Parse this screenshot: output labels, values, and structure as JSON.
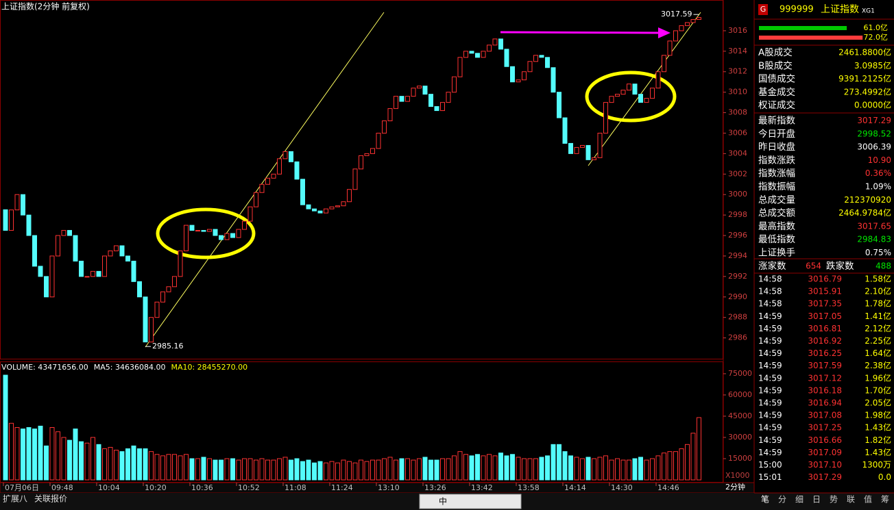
{
  "chart_data": [
    {
      "type": "candlestick",
      "title": "上证指数(2分钟 前复权)",
      "up_color": "#ff3232",
      "down_color": "#54fcfc",
      "ylim": [
        2983.9,
        3017.8
      ],
      "yticks": [
        2986,
        2988,
        2990,
        2992,
        2994,
        2996,
        2998,
        3000,
        3002,
        3004,
        3006,
        3008,
        3010,
        3012,
        3014,
        3016
      ],
      "open": [
        2998.52,
        2996.5,
        2998.5,
        3000,
        2998,
        2996,
        2993,
        2992,
        2990,
        2994,
        2996,
        2996.5,
        2996,
        2993.5,
        2992,
        2992,
        2992.5,
        2992,
        2994,
        2994.5,
        2995,
        2994,
        2993.5,
        2991.5,
        2990,
        2985.6,
        2988,
        2989.5,
        2990.5,
        2991,
        2992,
        2994.5,
        2997,
        2996.5,
        2996.5,
        2996.4,
        2996.6,
        2996,
        2995.6,
        2996.2,
        2995.8,
        2996.6,
        2997.4,
        2998.8,
        3000.2,
        3001,
        3001.6,
        3002,
        3003.5,
        3004.2,
        3003.2,
        3001.5,
        2999,
        2998.6,
        2998.4,
        2998.2,
        2998.6,
        2998.8,
        2998.9,
        2999.3,
        3000.5,
        3002.5,
        3003.8,
        3004,
        3004.5,
        3006,
        3007.2,
        3008.4,
        3009.6,
        3009.1,
        3009.6,
        3010.4,
        3010.6,
        3009.8,
        3008.6,
        3008.2,
        3009,
        3010,
        3011.5,
        3013.4,
        3014,
        3013.8,
        3013.4,
        3014,
        3014.6,
        3015.2,
        3014.2,
        3012.5,
        3011,
        3011.2,
        3012,
        3013,
        3013.6,
        3013.4,
        3012.4,
        3010,
        3007.5,
        3005,
        3004,
        3004.6,
        3004.8,
        3003.4,
        3003.6,
        3006,
        3009,
        3009.6,
        3009.8,
        3010.2,
        3010.8,
        3009.8,
        3009,
        3009.4,
        3010.4,
        3012,
        3013.6,
        3015,
        3016,
        3016.5,
        3016.8,
        3017.1
      ],
      "close": [
        2996.5,
        2998.5,
        3000,
        2998,
        2996,
        2993,
        2992,
        2990,
        2994,
        2996,
        2996.5,
        2996,
        2993.5,
        2992,
        2992,
        2992.5,
        2992,
        2994,
        2994.5,
        2995,
        2994,
        2993.5,
        2991.5,
        2990,
        2985.6,
        2988,
        2989.5,
        2990.5,
        2991,
        2992,
        2994.5,
        2997,
        2996.5,
        2996.5,
        2996.4,
        2996.6,
        2996,
        2995.6,
        2996.2,
        2995.8,
        2996.6,
        2997.4,
        2998.8,
        3000.2,
        3001,
        3001.6,
        3002,
        3003.5,
        3004.2,
        3003.2,
        3001.5,
        2999,
        2998.6,
        2998.4,
        2998.2,
        2998.6,
        2998.8,
        2998.9,
        2999.3,
        3000.5,
        3002.5,
        3003.8,
        3004,
        3004.5,
        3006,
        3007.2,
        3008.4,
        3009.6,
        3009.1,
        3009.6,
        3010.4,
        3010.6,
        3009.8,
        3008.6,
        3008.2,
        3009,
        3010,
        3011.5,
        3013.4,
        3014,
        3013.8,
        3013.4,
        3014,
        3014.6,
        3015.2,
        3014.2,
        3012.5,
        3011,
        3011.2,
        3012,
        3013,
        3013.6,
        3013.4,
        3012.4,
        3010,
        3007.5,
        3005,
        3004,
        3004.6,
        3004.8,
        3003.4,
        3003.6,
        3006,
        3009,
        3009.6,
        3009.8,
        3010.2,
        3010.8,
        3009.8,
        3009,
        3009.4,
        3010.4,
        3012,
        3013.6,
        3015,
        3016,
        3016.5,
        3016.8,
        3017.1,
        3017.29
      ],
      "annotations": [
        2985.16,
        3017.59
      ]
    },
    {
      "type": "bar",
      "legend": [
        {
          "text": "VOLUME: 43471656.00",
          "color": "#ffffff"
        },
        {
          "text": "MA5: 34636084.00",
          "color": "#ffffff"
        },
        {
          "text": "MA10: 28455270.00",
          "color": "#ffff00"
        }
      ],
      "unit_note": "X1000",
      "period": "2分钟",
      "ylim": [
        0,
        82700
      ],
      "yticks": [
        15000,
        30000,
        45000,
        60000,
        75000
      ],
      "categories": [
        "07月06日",
        null,
        null,
        null,
        null,
        null,
        null,
        null,
        "09:48",
        null,
        null,
        null,
        null,
        null,
        null,
        null,
        "10:04",
        null,
        null,
        null,
        null,
        null,
        null,
        null,
        "10:20",
        null,
        null,
        null,
        null,
        null,
        null,
        null,
        "10:36",
        null,
        null,
        null,
        null,
        null,
        null,
        null,
        "10:52",
        null,
        null,
        null,
        null,
        null,
        null,
        null,
        "11:08",
        null,
        null,
        null,
        null,
        null,
        null,
        null,
        "11:24",
        null,
        null,
        null,
        null,
        null,
        null,
        null,
        "13:10",
        null,
        null,
        null,
        null,
        null,
        null,
        null,
        "13:26",
        null,
        null,
        null,
        null,
        null,
        null,
        null,
        "13:42",
        null,
        null,
        null,
        null,
        null,
        null,
        null,
        "13:58",
        null,
        null,
        null,
        null,
        null,
        null,
        null,
        "14:14",
        null,
        null,
        null,
        null,
        null,
        null,
        null,
        "14:30",
        null,
        null,
        null,
        null,
        null,
        null,
        null,
        "14:46",
        null,
        null,
        null,
        null,
        null,
        null,
        null
      ],
      "values": [
        74000,
        40000,
        37000,
        36000,
        37000,
        36000,
        38000,
        24000,
        37000,
        34000,
        30000,
        28000,
        36000,
        27000,
        26000,
        30000,
        25000,
        22000,
        23000,
        21000,
        20000,
        22000,
        24000,
        22000,
        22000,
        20000,
        18000,
        17000,
        18000,
        18000,
        17000,
        18000,
        15000,
        15000,
        16000,
        15000,
        14000,
        14000,
        15000,
        15000,
        14000,
        15000,
        15000,
        14000,
        15000,
        14000,
        14000,
        15000,
        16000,
        14000,
        15000,
        13000,
        14000,
        12000,
        13000,
        12000,
        13000,
        12000,
        14000,
        13000,
        12000,
        14000,
        13000,
        14000,
        14000,
        15000,
        16000,
        14000,
        15000,
        15000,
        14000,
        15000,
        16000,
        14000,
        14000,
        15000,
        15000,
        17000,
        20000,
        18000,
        17000,
        18000,
        17000,
        18000,
        17000,
        19000,
        17000,
        18000,
        16000,
        15000,
        15000,
        15000,
        16000,
        17000,
        25000,
        25000,
        20000,
        17000,
        16000,
        15000,
        16000,
        15000,
        16000,
        17000,
        14000,
        15000,
        14000,
        14000,
        15000,
        16000,
        14000,
        15000,
        17000,
        19000,
        20000,
        20000,
        22000,
        25000,
        33000,
        44000
      ]
    }
  ],
  "panel": {
    "icon": "G",
    "code": "999999",
    "name": "上证指数",
    "tag": "XG1",
    "bars": [
      {
        "value": 61.0,
        "label": "61.0亿",
        "color": "#00c800"
      },
      {
        "value": 72.0,
        "label": "72.0亿",
        "color": "#ff3c3c"
      }
    ],
    "stats": [
      {
        "label": "A股成交",
        "value": "2461.8800亿",
        "color": "#ffff00"
      },
      {
        "label": "B股成交",
        "value": "3.0985亿",
        "color": "#ffff00"
      },
      {
        "label": "国债成交",
        "value": "9391.2125亿",
        "color": "#ffff00"
      },
      {
        "label": "基金成交",
        "value": "273.4992亿",
        "color": "#ffff00"
      },
      {
        "label": "权证成交",
        "value": "0.0000亿",
        "color": "#ffff00"
      },
      {
        "label": "最新指数",
        "value": "3017.29",
        "color": "#ff3232"
      },
      {
        "label": "今日开盘",
        "value": "2998.52",
        "color": "#00e600"
      },
      {
        "label": "昨日收盘",
        "value": "3006.39",
        "color": "#ffffff"
      },
      {
        "label": "指数涨跌",
        "value": "10.90",
        "color": "#ff3232"
      },
      {
        "label": "指数涨幅",
        "value": "0.36%",
        "color": "#ff3232"
      },
      {
        "label": "指数振幅",
        "value": "1.09%",
        "color": "#ffffff"
      },
      {
        "label": "总成交量",
        "value": "212370920",
        "color": "#ffff00"
      },
      {
        "label": "总成交额",
        "value": "2464.9784亿",
        "color": "#ffff00"
      },
      {
        "label": "最高指数",
        "value": "3017.65",
        "color": "#ff3232"
      },
      {
        "label": "最低指数",
        "value": "2984.83",
        "color": "#00e600"
      },
      {
        "label": "上证换手",
        "value": "0.75%",
        "color": "#ffffff"
      }
    ],
    "breadth": {
      "up_label": "涨家数",
      "up": "654",
      "down_label": "跌家数",
      "down": "488"
    },
    "trades": [
      [
        "14:58",
        "3016.79",
        "1.58亿"
      ],
      [
        "14:58",
        "3015.91",
        "2.10亿"
      ],
      [
        "14:58",
        "3017.35",
        "1.78亿"
      ],
      [
        "14:59",
        "3017.05",
        "1.41亿"
      ],
      [
        "14:59",
        "3016.81",
        "2.12亿"
      ],
      [
        "14:59",
        "3016.92",
        "2.25亿"
      ],
      [
        "14:59",
        "3016.25",
        "1.64亿"
      ],
      [
        "14:59",
        "3017.59",
        "2.38亿"
      ],
      [
        "14:59",
        "3017.12",
        "1.96亿"
      ],
      [
        "14:59",
        "3016.18",
        "1.70亿"
      ],
      [
        "14:59",
        "3016.94",
        "2.05亿"
      ],
      [
        "14:59",
        "3017.08",
        "1.98亿"
      ],
      [
        "14:59",
        "3017.25",
        "1.43亿"
      ],
      [
        "14:59",
        "3016.66",
        "1.82亿"
      ],
      [
        "14:59",
        "3017.09",
        "1.43亿"
      ],
      [
        "15:00",
        "3017.10",
        "1300万"
      ],
      [
        "15:01",
        "3017.29",
        "0.0"
      ]
    ],
    "tabs": [
      "笔",
      "分",
      "细",
      "日",
      "势",
      "联",
      "值",
      "筹"
    ]
  },
  "footer": {
    "left": [
      "扩展八",
      "关联报价"
    ],
    "toolbar": "中"
  }
}
